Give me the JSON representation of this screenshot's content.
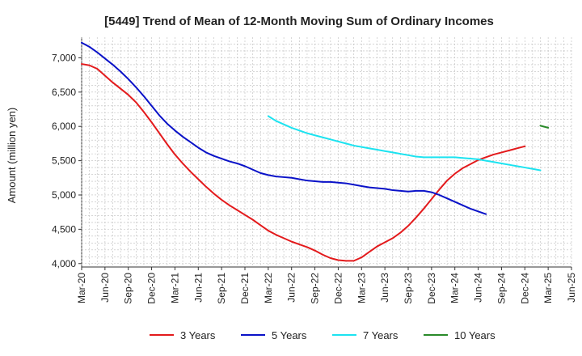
{
  "chart_data": {
    "type": "line",
    "title": "[5449]  Trend of Mean of 12-Month Moving Sum of Ordinary Incomes",
    "xlabel": "",
    "ylabel": "Amount (million yen)",
    "ylim": [
      3950,
      7300
    ],
    "yticks": [
      4000,
      4500,
      5000,
      5500,
      6000,
      6500,
      7000
    ],
    "ytick_labels": [
      "4,000",
      "4,500",
      "5,000",
      "5,500",
      "6,000",
      "6,500",
      "7,000"
    ],
    "xlim_months": [
      0,
      63
    ],
    "xticks": [
      {
        "m": 0,
        "label": "Mar-20"
      },
      {
        "m": 3,
        "label": "Jun-20"
      },
      {
        "m": 6,
        "label": "Sep-20"
      },
      {
        "m": 9,
        "label": "Dec-20"
      },
      {
        "m": 12,
        "label": "Mar-21"
      },
      {
        "m": 15,
        "label": "Jun-21"
      },
      {
        "m": 18,
        "label": "Sep-21"
      },
      {
        "m": 21,
        "label": "Dec-21"
      },
      {
        "m": 24,
        "label": "Mar-22"
      },
      {
        "m": 27,
        "label": "Jun-22"
      },
      {
        "m": 30,
        "label": "Sep-22"
      },
      {
        "m": 33,
        "label": "Dec-22"
      },
      {
        "m": 36,
        "label": "Mar-23"
      },
      {
        "m": 39,
        "label": "Jun-23"
      },
      {
        "m": 42,
        "label": "Sep-23"
      },
      {
        "m": 45,
        "label": "Dec-23"
      },
      {
        "m": 48,
        "label": "Mar-24"
      },
      {
        "m": 51,
        "label": "Jun-24"
      },
      {
        "m": 54,
        "label": "Sep-24"
      },
      {
        "m": 57,
        "label": "Dec-24"
      },
      {
        "m": 60,
        "label": "Mar-25"
      },
      {
        "m": 63,
        "label": "Jun-25"
      }
    ],
    "grid": true,
    "legend_position": "bottom",
    "series": [
      {
        "name": "3 Years",
        "color": "#e31a1c",
        "start_month": 0,
        "values": [
          6910,
          6890,
          6840,
          6740,
          6640,
          6550,
          6460,
          6350,
          6210,
          6060,
          5900,
          5740,
          5590,
          5460,
          5340,
          5230,
          5120,
          5020,
          4930,
          4850,
          4780,
          4710,
          4640,
          4560,
          4480,
          4420,
          4370,
          4320,
          4280,
          4240,
          4190,
          4130,
          4080,
          4050,
          4040,
          4040,
          4090,
          4170,
          4250,
          4310,
          4370,
          4450,
          4550,
          4670,
          4800,
          4940,
          5080,
          5210,
          5310,
          5390,
          5450,
          5510,
          5550,
          5590,
          5620,
          5650,
          5680,
          5710
        ]
      },
      {
        "name": "5 Years",
        "color": "#0a12c8",
        "start_month": 0,
        "values": [
          7220,
          7160,
          7080,
          6990,
          6900,
          6800,
          6690,
          6570,
          6440,
          6300,
          6160,
          6040,
          5940,
          5850,
          5770,
          5690,
          5620,
          5570,
          5530,
          5490,
          5460,
          5420,
          5370,
          5320,
          5290,
          5270,
          5260,
          5250,
          5230,
          5210,
          5200,
          5190,
          5190,
          5180,
          5170,
          5150,
          5130,
          5110,
          5100,
          5090,
          5070,
          5060,
          5050,
          5060,
          5060,
          5040,
          5000,
          4950,
          4900,
          4850,
          4800,
          4760,
          4720
        ]
      },
      {
        "name": "7 Years",
        "color": "#1ce3f0",
        "start_month": 24,
        "values": [
          6150,
          6080,
          6030,
          5980,
          5940,
          5900,
          5870,
          5840,
          5810,
          5780,
          5750,
          5720,
          5700,
          5680,
          5660,
          5640,
          5620,
          5600,
          5580,
          5560,
          5550,
          5550,
          5550,
          5550,
          5550,
          5540,
          5530,
          5520,
          5500,
          5480,
          5460,
          5440,
          5420,
          5400,
          5380,
          5360
        ]
      },
      {
        "name": "10 Years",
        "color": "#2a8a2a",
        "start_month": 59,
        "values": [
          6010,
          5980
        ]
      }
    ]
  }
}
